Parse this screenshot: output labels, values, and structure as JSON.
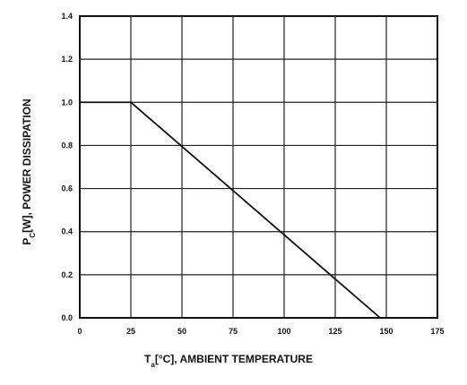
{
  "chart_data": {
    "type": "line",
    "title": "",
    "xlabel": {
      "prefix": "T",
      "subscript": "a",
      "suffix": "[°C], AMBIENT TEMPERATURE"
    },
    "ylabel": {
      "prefix": "P",
      "subscript": "C",
      "suffix": "[W], POWER DISSIPATION"
    },
    "xlim": [
      0,
      175
    ],
    "ylim": [
      0,
      1.4
    ],
    "xticks": [
      "0",
      "25",
      "50",
      "75",
      "100",
      "125",
      "150",
      "175"
    ],
    "yticks": [
      "0.0",
      "0.2",
      "0.4",
      "0.6",
      "0.8",
      "1.0",
      "1.2",
      "1.4"
    ],
    "grid": true,
    "series": [
      {
        "x": [
          0,
          25,
          147
        ],
        "y": [
          1.0,
          1.0,
          0.0
        ]
      }
    ],
    "colors": {
      "line": "#111111",
      "grid": "#222222",
      "frame": "#111111"
    }
  }
}
